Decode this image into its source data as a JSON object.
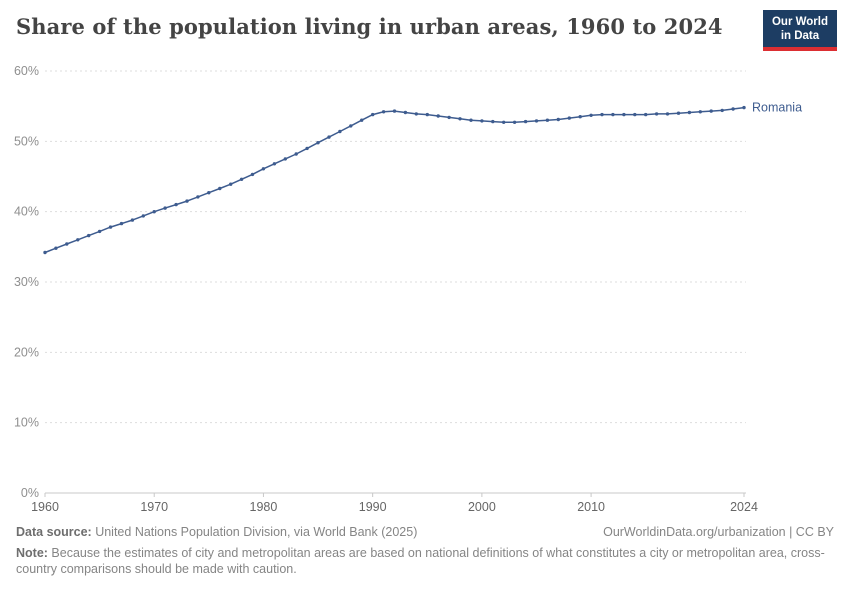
{
  "header": {
    "title": "Share of the population living in urban areas, 1960 to 2024",
    "logo_line1": "Our World",
    "logo_line2": "in Data"
  },
  "colors": {
    "line": "#3e5c8f",
    "logo_bg": "#1d3d63",
    "logo_accent": "#dc2e32",
    "grid": "#dddddd",
    "axis_bottom": "#c8c8c8",
    "ytick_text": "#8f8f8f",
    "xtick_text": "#666666"
  },
  "chart_data": {
    "type": "line",
    "title": "Share of the population living in urban areas, 1960 to 2024",
    "xlabel": "",
    "ylabel": "",
    "x_range": [
      1960,
      2024
    ],
    "ylim": [
      0,
      60
    ],
    "yticks": [
      0,
      10,
      20,
      30,
      40,
      50,
      60
    ],
    "ytick_labels": [
      "0%",
      "10%",
      "20%",
      "30%",
      "40%",
      "50%",
      "60%"
    ],
    "xticks": [
      1960,
      1970,
      1980,
      1990,
      2000,
      2010,
      2024
    ],
    "grid": true,
    "legend_position": "end-of-line",
    "series": [
      {
        "name": "Romania",
        "color": "#3e5c8f",
        "values": [
          34.2,
          34.8,
          35.4,
          36.0,
          36.6,
          37.2,
          37.8,
          38.3,
          38.8,
          39.4,
          40.0,
          40.5,
          41.0,
          41.5,
          42.1,
          42.7,
          43.3,
          43.9,
          44.6,
          45.3,
          46.1,
          46.8,
          47.5,
          48.2,
          49.0,
          49.8,
          50.6,
          51.4,
          52.2,
          53.0,
          53.8,
          54.2,
          54.3,
          54.1,
          53.9,
          53.8,
          53.6,
          53.4,
          53.2,
          53.0,
          52.9,
          52.8,
          52.7,
          52.7,
          52.8,
          52.9,
          53.0,
          53.1,
          53.3,
          53.5,
          53.7,
          53.8,
          53.8,
          53.8,
          53.8,
          53.8,
          53.9,
          53.9,
          54.0,
          54.1,
          54.2,
          54.3,
          54.4,
          54.6,
          54.8
        ]
      }
    ]
  },
  "footer": {
    "source_label": "Data source:",
    "source_text": " United Nations Population Division, via World Bank (2025)",
    "link_text": "OurWorldinData.org/urbanization | CC BY",
    "note_label": "Note:",
    "note_text": " Because the estimates of city and metropolitan areas are based on national definitions of what constitutes a city or metropolitan area, cross-country comparisons should be made with caution."
  }
}
